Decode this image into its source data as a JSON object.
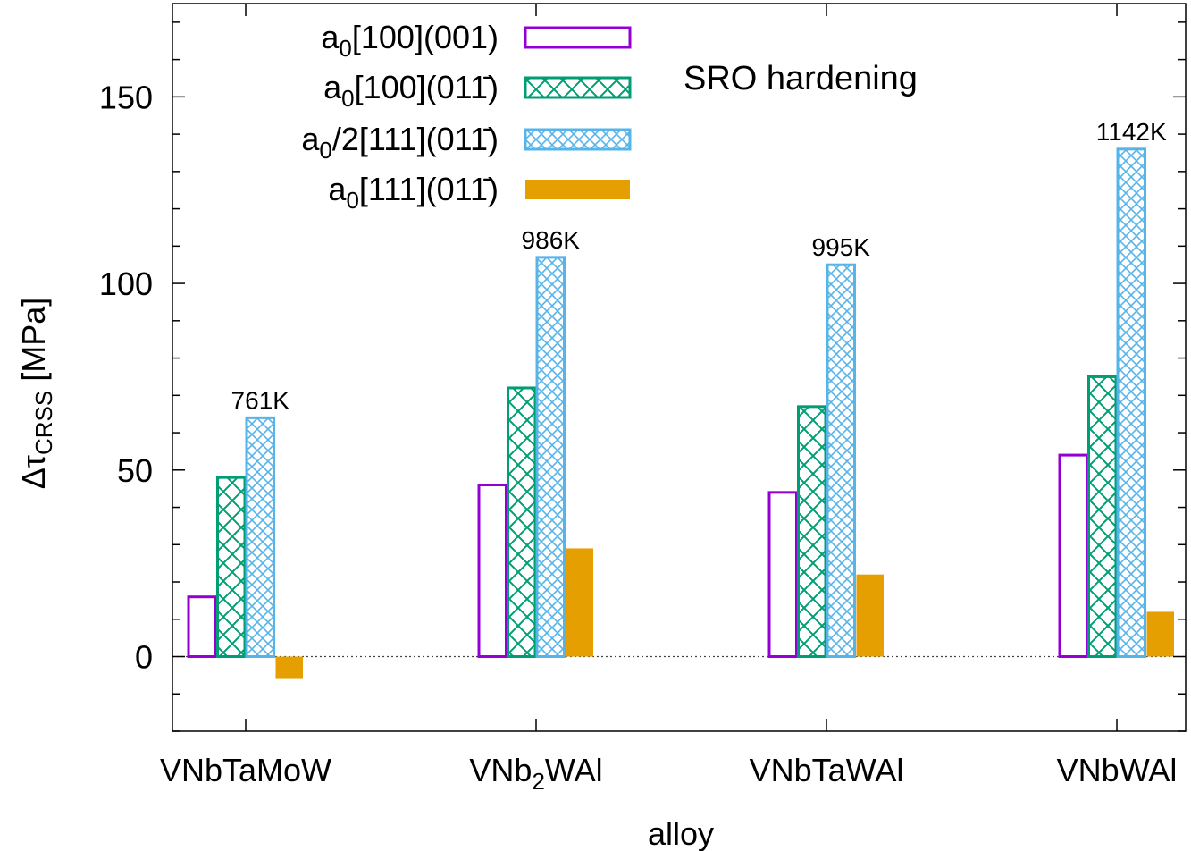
{
  "chart_data": {
    "type": "bar",
    "categories": [
      {
        "main": "VNbTaMoW",
        "sub": "",
        "post": ""
      },
      {
        "main": "VNb",
        "sub": "2",
        "post": "WAl"
      },
      {
        "main": "VNbTaWAl",
        "sub": "",
        "post": ""
      },
      {
        "main": "VNbWAl",
        "sub": "",
        "post": ""
      }
    ],
    "series": [
      {
        "name": "a0[100](001)",
        "label_main": "a",
        "label_sub": "0",
        "label_rest": "[100](001)",
        "bar": "a",
        "style": "outline",
        "color": "#9400d3",
        "values": [
          16,
          46,
          44,
          54
        ]
      },
      {
        "name": "a0[100](011̄)",
        "label_main": "a",
        "label_sub": "0",
        "label_rest": "[100](011̄)",
        "bar": "a",
        "style": "cross-hatch",
        "color": "#009e73",
        "values": [
          48,
          72,
          67,
          75
        ]
      },
      {
        "name": "a0/2[111](011̄)",
        "label_main": "a",
        "label_sub": "0",
        "label_rest": "/2[111](011̄)",
        "bar": "a",
        "style": "fine-cross-hatch",
        "color": "#56b4e9",
        "values": [
          64,
          107,
          105,
          136
        ]
      },
      {
        "name": "a0[111](011̄)",
        "label_main": "a",
        "label_sub": "0",
        "label_rest": "[111](011̄)",
        "bar": "a",
        "style": "solid",
        "color": "#e69f00",
        "values": [
          -6,
          29,
          22,
          12
        ]
      }
    ],
    "annotations": [
      "761K",
      "986K",
      "995K",
      "1142K"
    ],
    "note": "SRO hardening",
    "xlabel": "alloy",
    "ylabel_main": "Δτ",
    "ylabel_sub": "CRSS",
    "ylabel_rest": " [MPa]",
    "ylim": [
      -20,
      175
    ],
    "yticks": [
      0,
      50,
      100,
      150
    ],
    "grid": false,
    "zero_line": true,
    "legend_position": "top-left"
  }
}
